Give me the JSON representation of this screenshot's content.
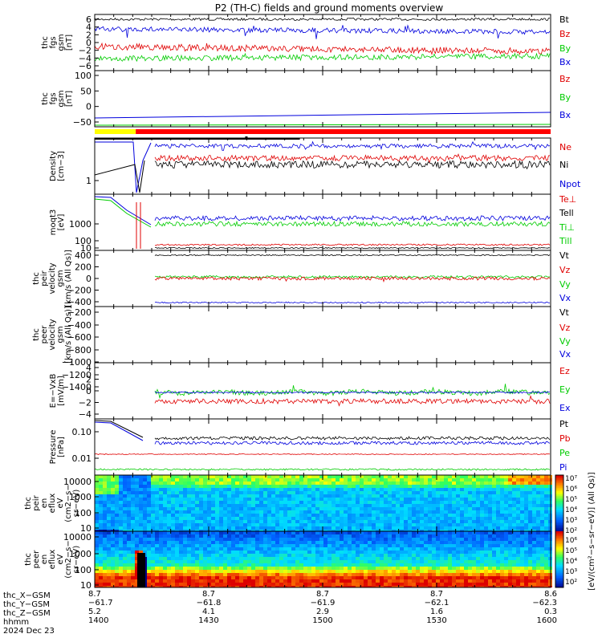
{
  "title": "P2 (TH-C) fields and ground moments overview",
  "colors": {
    "black": "#000000",
    "red": "#e00000",
    "green": "#00cc00",
    "blue": "#0000dd",
    "yellow": "#ffff00",
    "barRed": "#ff0000"
  },
  "chart_data": [
    {
      "type": "line",
      "ylabel": [
        "thc",
        "fgs",
        "gsm",
        "[nT]"
      ],
      "yticks": [
        "6",
        "4",
        "2",
        "0",
        "−2",
        "−4",
        "−6"
      ],
      "ylim": [
        -7,
        7
      ],
      "legend": [
        "Bt",
        "Bz",
        "By",
        "Bx"
      ],
      "series": [
        {
          "name": "Bt",
          "color": "#000000",
          "level": 6.4,
          "noise": 0.5
        },
        {
          "name": "Bz",
          "color": "#e00000",
          "level": -0.5,
          "noise": 0.9
        },
        {
          "name": "By",
          "color": "#00cc00",
          "level": -3.5,
          "noise": 0.9
        },
        {
          "name": "Bx",
          "color": "#0000dd",
          "level": 4.2,
          "noise": 0.9
        }
      ]
    },
    {
      "type": "line",
      "ylabel": [
        "thc",
        "fgs",
        "gsm",
        "[nT]"
      ],
      "yticks": [
        "100",
        "50",
        "0",
        "−50"
      ],
      "ylim": [
        -75,
        110
      ],
      "legend": [
        "Bz",
        "By",
        "Bx"
      ],
      "series": [
        {
          "name": "Bx",
          "color": "#0000dd",
          "start": -58,
          "end": -38
        },
        {
          "name": "By",
          "color": "#00cc00",
          "start": -70,
          "end": -68
        }
      ]
    },
    {
      "type": "bar",
      "note": "mode bar",
      "segments": [
        {
          "color": "#ffff00",
          "from": 0,
          "to": 0.09
        },
        {
          "color": "#ff0000",
          "from": 0.09,
          "to": 1
        }
      ]
    },
    {
      "type": "line",
      "ylabel": [
        "Density",
        "[cm−3]"
      ],
      "yticks": [
        "1"
      ],
      "legend": [
        "Ne",
        "Ni",
        "Npot"
      ],
      "series": [
        {
          "name": "Npot",
          "color": "#0000dd",
          "level": 6.5
        },
        {
          "name": "Ne",
          "color": "#e00000",
          "level": 3.5
        },
        {
          "name": "Ni",
          "color": "#000000",
          "level": 2.6
        }
      ]
    },
    {
      "type": "line",
      "ylabel": [
        "moqt3",
        "[eV]"
      ],
      "yticks": [
        "1000",
        "100",
        "10"
      ],
      "legend": [
        "Te⊥",
        "Tell",
        "Ti⊥",
        "Till"
      ],
      "series": [
        {
          "name": "Ti⊥",
          "color": "#0000dd",
          "level": 180
        },
        {
          "name": "Till",
          "color": "#00cc00",
          "level": 110
        },
        {
          "name": "Te⊥",
          "color": "#e00000",
          "level": 14
        },
        {
          "name": "Tell",
          "color": "#000000",
          "level": 9
        }
      ]
    },
    {
      "type": "line",
      "ylabel": [
        "thc",
        "peir",
        "velocity",
        "gsm",
        "[km/s (All Qs)]"
      ],
      "yticks": [
        "400",
        "200",
        "0",
        "−200",
        "−400"
      ],
      "legend": [
        "Vt",
        "Vz",
        "Vy",
        "Vx"
      ],
      "series": [
        {
          "name": "Vt",
          "color": "#000000",
          "level": 470
        },
        {
          "name": "Vy",
          "color": "#00cc00",
          "level": 60
        },
        {
          "name": "Vz",
          "color": "#e00000",
          "level": 40
        },
        {
          "name": "Vx",
          "color": "#0000dd",
          "level": -470
        }
      ]
    },
    {
      "type": "line",
      "ylabel": [
        "thc",
        "peer",
        "velocity",
        "gsm",
        "[km/s (All Qs)]"
      ],
      "yticks": [
        "−200",
        "−400",
        "−600",
        "−800",
        "−1000",
        "−1200",
        "−1400"
      ],
      "legend": [
        "Vt",
        "Vz",
        "Vy",
        "Vx"
      ],
      "series": []
    },
    {
      "type": "line",
      "ylabel": [
        "E=−VxB",
        "[mV/m]"
      ],
      "yticks": [
        "4",
        "2",
        "0",
        "−2",
        "−4"
      ],
      "legend": [
        "Ez",
        "Ey",
        "Ex"
      ],
      "series": [
        {
          "name": "Ex",
          "color": "#0000dd",
          "level": 0.2
        },
        {
          "name": "Ey",
          "color": "#00cc00",
          "level": 0.5
        },
        {
          "name": "Ez",
          "color": "#e00000",
          "level": -1.5
        }
      ]
    },
    {
      "type": "line",
      "ylabel": [
        "Pressure",
        "[nPa]"
      ],
      "yticks": [
        "0.10",
        "0.01"
      ],
      "legend": [
        "Pt",
        "Pb",
        "Pe",
        "Pi"
      ],
      "series": [
        {
          "name": "Pt",
          "color": "#000000",
          "level": 0.05
        },
        {
          "name": "Pi",
          "color": "#0000dd",
          "level": 0.03
        },
        {
          "name": "Pb",
          "color": "#e00000",
          "level": 0.012
        },
        {
          "name": "Pe",
          "color": "#00cc00",
          "level": 0.0045
        }
      ]
    },
    {
      "type": "heatmap",
      "ylabel": [
        "thc",
        "peir",
        "en",
        "eflux",
        "eV",
        "(cm2−s−",
        "sr−eV)"
      ],
      "yticks": [
        "10000",
        "1000",
        "100",
        "10"
      ]
    },
    {
      "type": "heatmap",
      "ylabel": [
        "thc",
        "peer",
        "en",
        "eflux",
        "eV",
        "(cm2−s−",
        "sr−eV)"
      ],
      "yticks": [
        "10000",
        "1000",
        "100",
        "10"
      ]
    }
  ],
  "colorbar": {
    "ticks": [
      "10⁷",
      "10⁶",
      "10⁵",
      "10⁴",
      "10³",
      "10²",
      "10⁶",
      "10⁵",
      "10⁴",
      "10³",
      "10²"
    ],
    "label": "[eV/(cm²−s−sr−eV)] (All Qs)]"
  },
  "xaxis": {
    "row_labels": [
      "thc_X−GSM",
      "thc_Y−GSM",
      "thc_Z−GSM",
      "hhmm",
      "2024 Dec 23"
    ],
    "columns": [
      {
        "x": "8.7",
        "y": "−61.7",
        "z": "5.2",
        "t": "1400"
      },
      {
        "x": "8.7",
        "y": "−61.8",
        "z": "4.1",
        "t": "1430"
      },
      {
        "x": "8.7",
        "y": "−61.9",
        "z": "2.9",
        "t": "1500"
      },
      {
        "x": "8.7",
        "y": "−62.1",
        "z": "1.6",
        "t": "1530"
      },
      {
        "x": "8.6",
        "y": "−62.3",
        "z": "0.3",
        "t": "1600"
      }
    ]
  }
}
